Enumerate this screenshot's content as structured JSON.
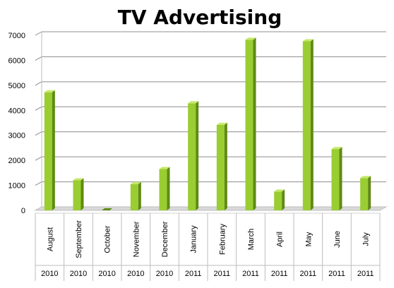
{
  "chart_data": {
    "type": "bar",
    "title": "TV Advertising",
    "categories": [
      "August",
      "September",
      "October",
      "November",
      "December",
      "January",
      "February",
      "March",
      "April",
      "May",
      "June",
      "July"
    ],
    "years": [
      "2010",
      "2010",
      "2010",
      "2010",
      "2010",
      "2011",
      "2011",
      "2011",
      "2011",
      "2011",
      "2011",
      "2011"
    ],
    "values": [
      4720,
      1200,
      0,
      1050,
      1650,
      4280,
      3420,
      6820,
      750,
      6760,
      2450,
      1290
    ],
    "ylim": [
      0,
      7000
    ],
    "yticks": [
      "0",
      "1000",
      "2000",
      "3000",
      "4000",
      "5000",
      "6000",
      "7000"
    ],
    "grid": true,
    "colors": {
      "bar_front": "#9acd32",
      "bar_side": "#5f8a14",
      "bar_top": "#c6e86a",
      "grid": "#8c8c8c",
      "axis_floor": "#d9d9d9"
    }
  }
}
